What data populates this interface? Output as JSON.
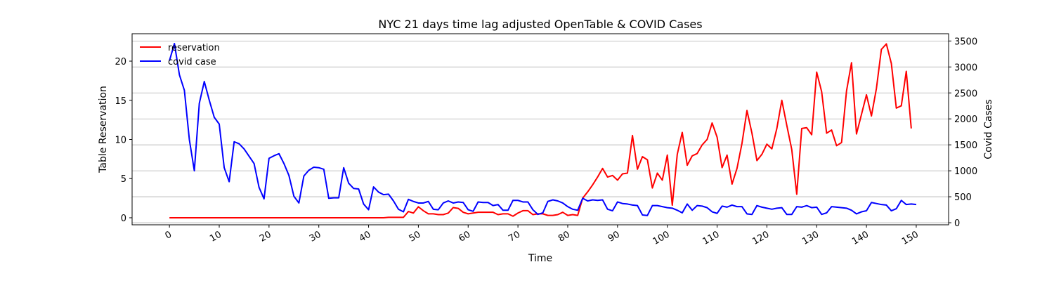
{
  "chart_data": {
    "type": "line",
    "title": "NYC 21 days time lag adjusted OpenTable & COVID Cases",
    "xlabel": "Time",
    "ylabel_left": "Table Reservation",
    "ylabel_right": "Covid Cases",
    "xlim": [
      -7.5,
      156.5
    ],
    "ylim_left": [
      -0.9,
      23.5
    ],
    "ylim_right": [
      -40,
      3640
    ],
    "x_ticks": [
      0,
      10,
      20,
      30,
      40,
      50,
      60,
      70,
      80,
      90,
      100,
      110,
      120,
      130,
      140,
      150
    ],
    "y_ticks_left": [
      0,
      5,
      10,
      15,
      20
    ],
    "y_ticks_right": [
      0,
      500,
      1000,
      1500,
      2000,
      2500,
      3000,
      3500
    ],
    "grid": "horizontal (right axis)",
    "legend_position": "top-left",
    "series": [
      {
        "name": "reservation",
        "axis": "left",
        "color": "#ff0000",
        "x_start": 0,
        "values": [
          0,
          0,
          0,
          0,
          0,
          0,
          0,
          0,
          0,
          0,
          0,
          0,
          0,
          0,
          0,
          0,
          0,
          0,
          0,
          0,
          0,
          0,
          0,
          0,
          0,
          0,
          0,
          0,
          0,
          0,
          0,
          0,
          0,
          0,
          0,
          0,
          0,
          0,
          0,
          0,
          0,
          0,
          0,
          0,
          0.05,
          0.05,
          0.05,
          0.05,
          0.8,
          0.6,
          1.4,
          0.9,
          0.5,
          0.5,
          0.4,
          0.4,
          0.6,
          1.3,
          1.2,
          0.7,
          0.5,
          0.6,
          0.7,
          0.7,
          0.7,
          0.7,
          0.4,
          0.5,
          0.5,
          0.2,
          0.6,
          0.9,
          0.9,
          0.4,
          0.5,
          0.5,
          0.3,
          0.3,
          0.4,
          0.7,
          0.3,
          0.4,
          0.3,
          2.5,
          3.3,
          4.2,
          5.2,
          6.3,
          5.2,
          5.4,
          4.8,
          5.6,
          5.7,
          10.5,
          6.2,
          7.8,
          7.4,
          3.8,
          5.7,
          4.8,
          8.0,
          1.6,
          8.1,
          10.9,
          6.7,
          7.9,
          8.2,
          9.3,
          10.0,
          12.1,
          10.3,
          6.4,
          8.0,
          4.3,
          6.3,
          9.5,
          13.7,
          10.8,
          7.3,
          8.1,
          9.4,
          8.8,
          11.4,
          15.0,
          11.8,
          8.7,
          3.0,
          11.4,
          11.5,
          10.6,
          18.6,
          16.1,
          10.8,
          11.2,
          9.2,
          9.6,
          16.2,
          19.8,
          10.7,
          13.2,
          15.7,
          13.0,
          16.5,
          21.5,
          22.2,
          19.7,
          14.0,
          14.3,
          18.7,
          11.4
        ]
      },
      {
        "name": "covid case",
        "axis": "right",
        "color": "#0000ff",
        "x_start": 0,
        "values": [
          3120,
          3450,
          2850,
          2550,
          1600,
          1000,
          2300,
          2720,
          2360,
          2030,
          1900,
          1060,
          790,
          1560,
          1520,
          1420,
          1280,
          1140,
          680,
          460,
          1240,
          1290,
          1330,
          1140,
          910,
          510,
          380,
          900,
          1010,
          1070,
          1060,
          1030,
          470,
          480,
          480,
          1060,
          760,
          660,
          650,
          360,
          250,
          690,
          590,
          540,
          550,
          420,
          260,
          210,
          450,
          410,
          380,
          380,
          410,
          260,
          250,
          380,
          420,
          380,
          400,
          390,
          250,
          220,
          400,
          390,
          390,
          330,
          350,
          240,
          240,
          430,
          430,
          400,
          400,
          250,
          160,
          190,
          410,
          440,
          420,
          380,
          310,
          260,
          240,
          470,
          420,
          440,
          430,
          440,
          260,
          230,
          400,
          370,
          360,
          340,
          330,
          150,
          140,
          330,
          330,
          310,
          290,
          280,
          240,
          190,
          360,
          240,
          330,
          320,
          290,
          210,
          180,
          320,
          300,
          340,
          310,
          310,
          170,
          160,
          330,
          300,
          280,
          260,
          280,
          290,
          160,
          160,
          310,
          300,
          330,
          290,
          300,
          160,
          190,
          310,
          300,
          290,
          280,
          240,
          170,
          210,
          230,
          390,
          370,
          350,
          340,
          230,
          270,
          430,
          350,
          360,
          350
        ]
      }
    ]
  }
}
